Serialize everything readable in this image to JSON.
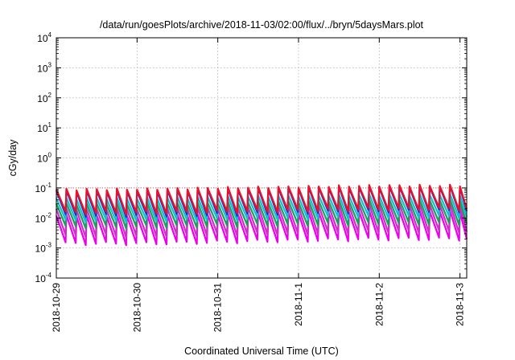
{
  "chart_data": {
    "type": "line",
    "title": "/data/run/goesPlots/archive/2018-11-03/02:00/flux/../bryn/5daysMars.plot",
    "xlabel": "Coordinated Universal Time (UTC)",
    "ylabel": "cGy/day",
    "y_scale": "log",
    "ylim": [
      0.0001,
      10000
    ],
    "y_ticks": [
      {
        "mantissa": "10",
        "exp": "4"
      },
      {
        "mantissa": "10",
        "exp": "3"
      },
      {
        "mantissa": "10",
        "exp": "2"
      },
      {
        "mantissa": "10",
        "exp": "1"
      },
      {
        "mantissa": "10",
        "exp": "0"
      },
      {
        "mantissa": "10",
        "exp": "-1"
      },
      {
        "mantissa": "10",
        "exp": "-2"
      },
      {
        "mantissa": "10",
        "exp": "-3"
      },
      {
        "mantissa": "10",
        "exp": "-4"
      }
    ],
    "xlim": [
      "2018-10-29 00:00",
      "2018-11-03 02:00"
    ],
    "x_ticks": [
      "2018-10-29",
      "2018-10-30",
      "2018-10-31",
      "2018-11-1",
      "2018-11-2",
      "2018-11-3"
    ],
    "grid": true,
    "legend": "none",
    "sawtooth_period_hours": 3,
    "series": [
      {
        "color": "#e8132a",
        "peak": [
          0.09,
          0.09,
          0.1,
          0.11,
          0.12,
          0.12
        ],
        "trough": [
          0.015,
          0.015,
          0.016,
          0.018,
          0.02,
          0.02
        ]
      },
      {
        "color": "#1e2fd0",
        "peak": [
          0.08,
          0.08,
          0.09,
          0.1,
          0.11,
          0.11
        ],
        "trough": [
          0.012,
          0.012,
          0.013,
          0.015,
          0.017,
          0.017
        ]
      },
      {
        "color": "#11bfcf",
        "peak": [
          0.045,
          0.045,
          0.05,
          0.055,
          0.06,
          0.06
        ],
        "trough": [
          0.008,
          0.008,
          0.009,
          0.01,
          0.011,
          0.011
        ]
      },
      {
        "color": "#19a05a",
        "peak": [
          0.03,
          0.03,
          0.032,
          0.036,
          0.04,
          0.04
        ],
        "trough": [
          0.005,
          0.005,
          0.0055,
          0.006,
          0.0065,
          0.0065
        ]
      },
      {
        "color": "#cf2fc8",
        "peak": [
          0.02,
          0.02,
          0.022,
          0.025,
          0.028,
          0.028
        ],
        "trough": [
          0.0025,
          0.0025,
          0.0028,
          0.003,
          0.0035,
          0.0035
        ]
      },
      {
        "color": "#ee00ee",
        "peak": [
          0.012,
          0.012,
          0.013,
          0.015,
          0.017,
          0.017
        ],
        "trough": [
          0.0014,
          0.0014,
          0.0016,
          0.0018,
          0.002,
          0.002
        ]
      }
    ],
    "reference_line": {
      "color": "#e8132a",
      "value": 0.1,
      "style": "dotted"
    }
  }
}
